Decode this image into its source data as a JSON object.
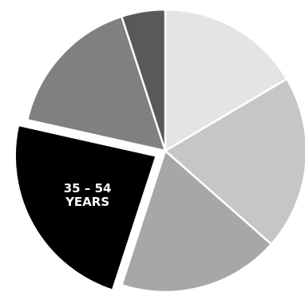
{
  "chart_data": {
    "type": "pie",
    "start_angle_deg": 0,
    "direction": "clockwise",
    "exploded_index": 3,
    "slices": [
      {
        "label": "",
        "value": 16.5,
        "color": "#e4e4e5"
      },
      {
        "label": "",
        "value": 20.0,
        "color": "#c6c6c7"
      },
      {
        "label": "",
        "value": 18.5,
        "color": "#a6a7a9"
      },
      {
        "label": [
          "35 – 54",
          "YEARS"
        ],
        "value": 23.5,
        "color": "#000000"
      },
      {
        "label": "",
        "value": 16.5,
        "color": "#7f8082"
      },
      {
        "label": "",
        "value": 5.0,
        "color": "#58595b"
      }
    ]
  }
}
